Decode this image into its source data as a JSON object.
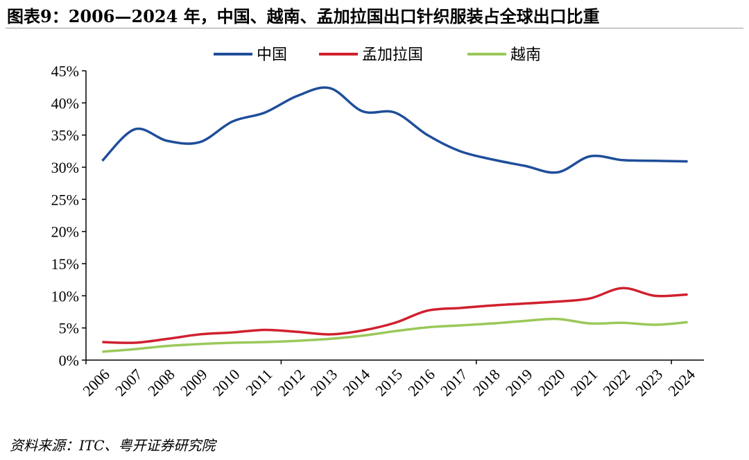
{
  "title": "图表9：2006—2024 年，中国、越南、孟加拉国出口针织服装占全球出口比重",
  "source": "资料来源：ITC、粤开证券研究院",
  "chart_data": {
    "type": "line",
    "title": "图表9：2006—2024 年，中国、越南、孟加拉国出口针织服装占全球出口比重",
    "xlabel": "",
    "ylabel": "",
    "ylim": [
      0,
      45
    ],
    "yticks": [
      "0%",
      "5%",
      "10%",
      "15%",
      "20%",
      "25%",
      "30%",
      "35%",
      "40%",
      "45%"
    ],
    "x": [
      "2006",
      "2007",
      "2008",
      "2009",
      "2010",
      "2011",
      "2012",
      "2013",
      "2014",
      "2015",
      "2016",
      "2017",
      "2018",
      "2019",
      "2020",
      "2021",
      "2022",
      "2023",
      "2024"
    ],
    "legend_position": "top",
    "series": [
      {
        "name": "中国",
        "color": "#1F4E9A",
        "values": [
          31.0,
          35.9,
          34.1,
          33.9,
          37.1,
          38.5,
          41.1,
          42.3,
          38.7,
          38.5,
          35.0,
          32.5,
          31.2,
          30.2,
          29.2,
          31.7,
          31.1,
          31.0,
          30.9
        ]
      },
      {
        "name": "孟加拉国",
        "color": "#D0202E",
        "values": [
          2.8,
          2.7,
          3.3,
          4.0,
          4.3,
          4.7,
          4.4,
          4.0,
          4.6,
          5.8,
          7.7,
          8.1,
          8.5,
          8.8,
          9.1,
          9.6,
          11.2,
          10.0,
          10.2
        ]
      },
      {
        "name": "越南",
        "color": "#9BC85A",
        "values": [
          1.3,
          1.7,
          2.2,
          2.5,
          2.7,
          2.8,
          3.0,
          3.3,
          3.8,
          4.5,
          5.1,
          5.4,
          5.7,
          6.1,
          6.4,
          5.7,
          5.8,
          5.5,
          5.9
        ]
      }
    ]
  }
}
